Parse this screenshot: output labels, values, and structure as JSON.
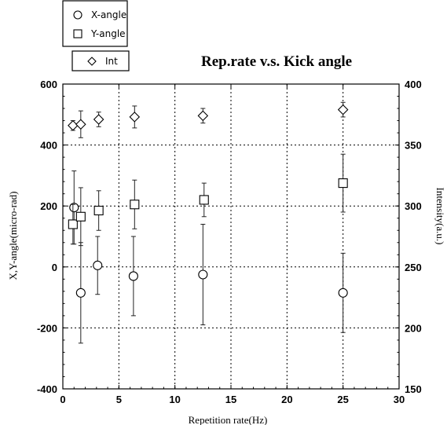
{
  "chart_data": {
    "type": "scatter",
    "title": "Rep.rate v.s. Kick angle",
    "xlabel": "Repetition rate(Hz)",
    "ylabel_left": "X,Y-angle(micro-rad)",
    "ylabel_right": "Intensity(a.u.)",
    "xlim": [
      0,
      30
    ],
    "ylim_left": [
      -400,
      600
    ],
    "ylim_right": [
      150,
      400
    ],
    "x_ticks": [
      "0",
      "5",
      "10",
      "15",
      "20",
      "25",
      "30"
    ],
    "y_left_ticks": [
      "-400",
      "-200",
      "0",
      "200",
      "400",
      "600"
    ],
    "y_right_ticks": [
      "150",
      "200",
      "250",
      "300",
      "350",
      "400"
    ],
    "grid": true,
    "legend": [
      {
        "label": "X-angle",
        "marker": "circle"
      },
      {
        "label": "Y-angle",
        "marker": "square"
      },
      {
        "label": "Int",
        "marker": "diamond"
      }
    ],
    "series": [
      {
        "name": "X-angle",
        "axis": "left",
        "marker": "circle",
        "x": [
          1,
          1.6,
          3.1,
          6.3,
          12.5,
          25
        ],
        "y": [
          195,
          -85,
          5,
          -30,
          -25,
          -85
        ],
        "err": [
          120,
          165,
          95,
          130,
          165,
          130
        ]
      },
      {
        "name": "Y-angle",
        "axis": "left",
        "marker": "square",
        "x": [
          0.9,
          1.6,
          3.2,
          6.4,
          12.6,
          25
        ],
        "y": [
          140,
          165,
          185,
          205,
          220,
          275
        ],
        "err": [
          65,
          95,
          65,
          80,
          55,
          95
        ]
      },
      {
        "name": "Int",
        "axis": "right",
        "marker": "diamond",
        "x": [
          0.9,
          1.6,
          3.2,
          6.4,
          12.5,
          25
        ],
        "y": [
          366,
          367,
          371,
          373,
          374,
          379
        ],
        "err": [
          4,
          11,
          6,
          9,
          6,
          6
        ]
      }
    ]
  }
}
